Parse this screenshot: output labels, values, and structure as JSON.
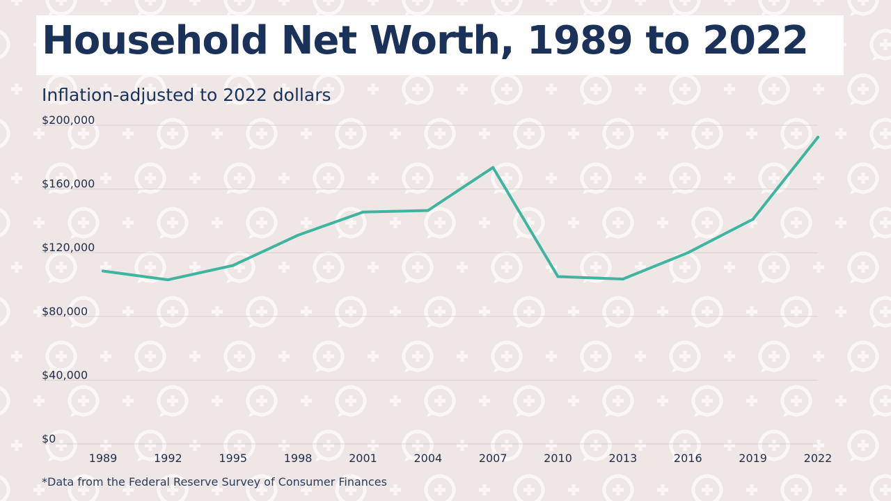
{
  "colors": {
    "background": "#efe6e6",
    "title": "#1a3259",
    "line": "#3fb59f",
    "pattern": "#fbf7f7",
    "grid": "#dcd0d0"
  },
  "icons": [
    "speech-bubble-plus-icon",
    "plus-icon"
  ],
  "chart_data": {
    "type": "line",
    "title": "Household Net Worth, 1989 to 2022",
    "subtitle": "Inflation-adjusted to 2022 dollars",
    "note": "*Data from the Federal Reserve Survey of Consumer Finances",
    "x": [
      "1989",
      "1992",
      "1995",
      "1998",
      "2001",
      "2004",
      "2007",
      "2010",
      "2013",
      "2016",
      "2019",
      "2022"
    ],
    "series": [
      {
        "values": [
          108500,
          103000,
          112000,
          131000,
          145500,
          146500,
          173500,
          105000,
          103500,
          120000,
          141000,
          192500
        ]
      }
    ],
    "ylim": [
      0,
      200000
    ],
    "yticks": [
      0,
      40000,
      80000,
      120000,
      160000,
      200000
    ],
    "ytick_labels": [
      "$0",
      "$40,000",
      "$80,000",
      "$120,000",
      "$160,000",
      "$200,000"
    ],
    "grid": true,
    "legend": "none"
  }
}
